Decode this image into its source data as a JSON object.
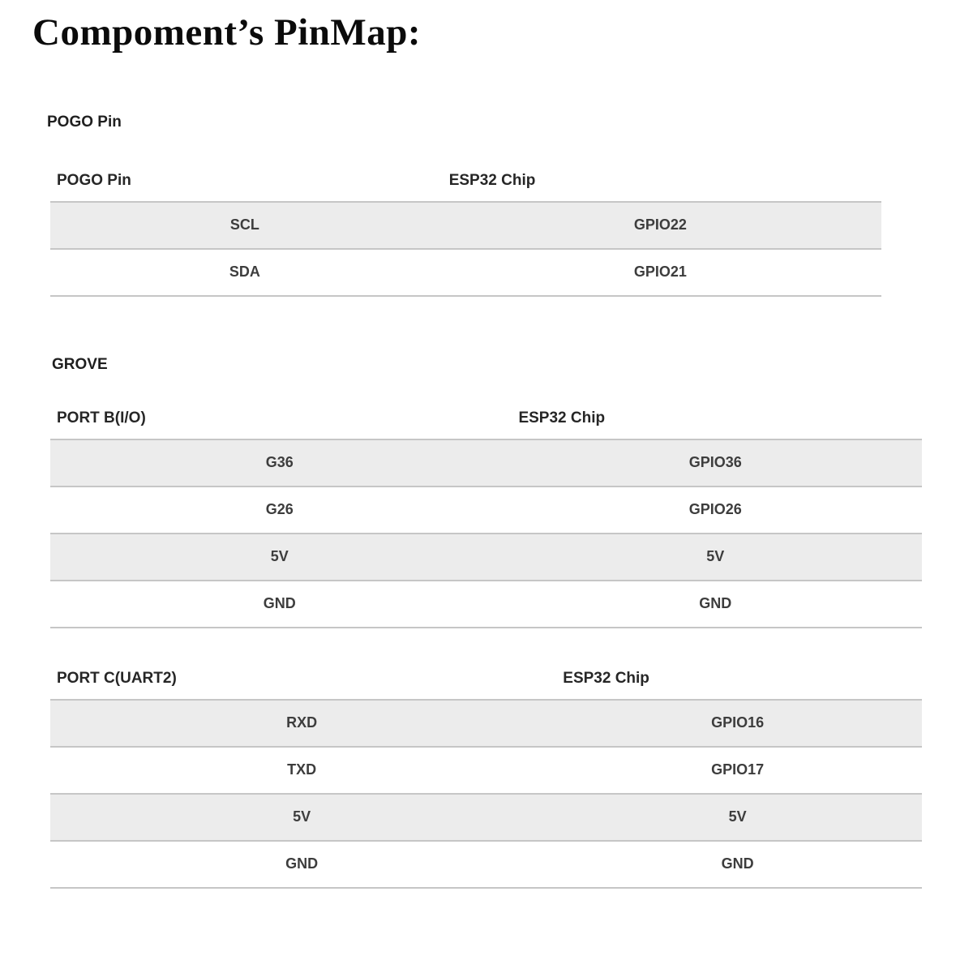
{
  "title": "Compoment’s PinMap:",
  "colors": {
    "row_stripe": "#ececec",
    "border": "#c6c6c6",
    "text": "#3d3d3d"
  },
  "sections": [
    {
      "label": "POGO Pin",
      "tables": [
        {
          "col1_header": "POGO Pin",
          "col2_header": "ESP32 Chip",
          "rows": [
            [
              "SCL",
              "GPIO22"
            ],
            [
              "SDA",
              "GPIO21"
            ]
          ]
        }
      ]
    },
    {
      "label": "GROVE",
      "tables": [
        {
          "col1_header": "PORT B(I/O)",
          "col2_header": "ESP32 Chip",
          "rows": [
            [
              "G36",
              "GPIO36"
            ],
            [
              "G26",
              "GPIO26"
            ],
            [
              "5V",
              "5V"
            ],
            [
              "GND",
              "GND"
            ]
          ]
        },
        {
          "col1_header": "PORT C(UART2)",
          "col2_header": "ESP32 Chip",
          "rows": [
            [
              "RXD",
              "GPIO16"
            ],
            [
              "TXD",
              "GPIO17"
            ],
            [
              "5V",
              "5V"
            ],
            [
              "GND",
              "GND"
            ]
          ]
        }
      ]
    }
  ]
}
